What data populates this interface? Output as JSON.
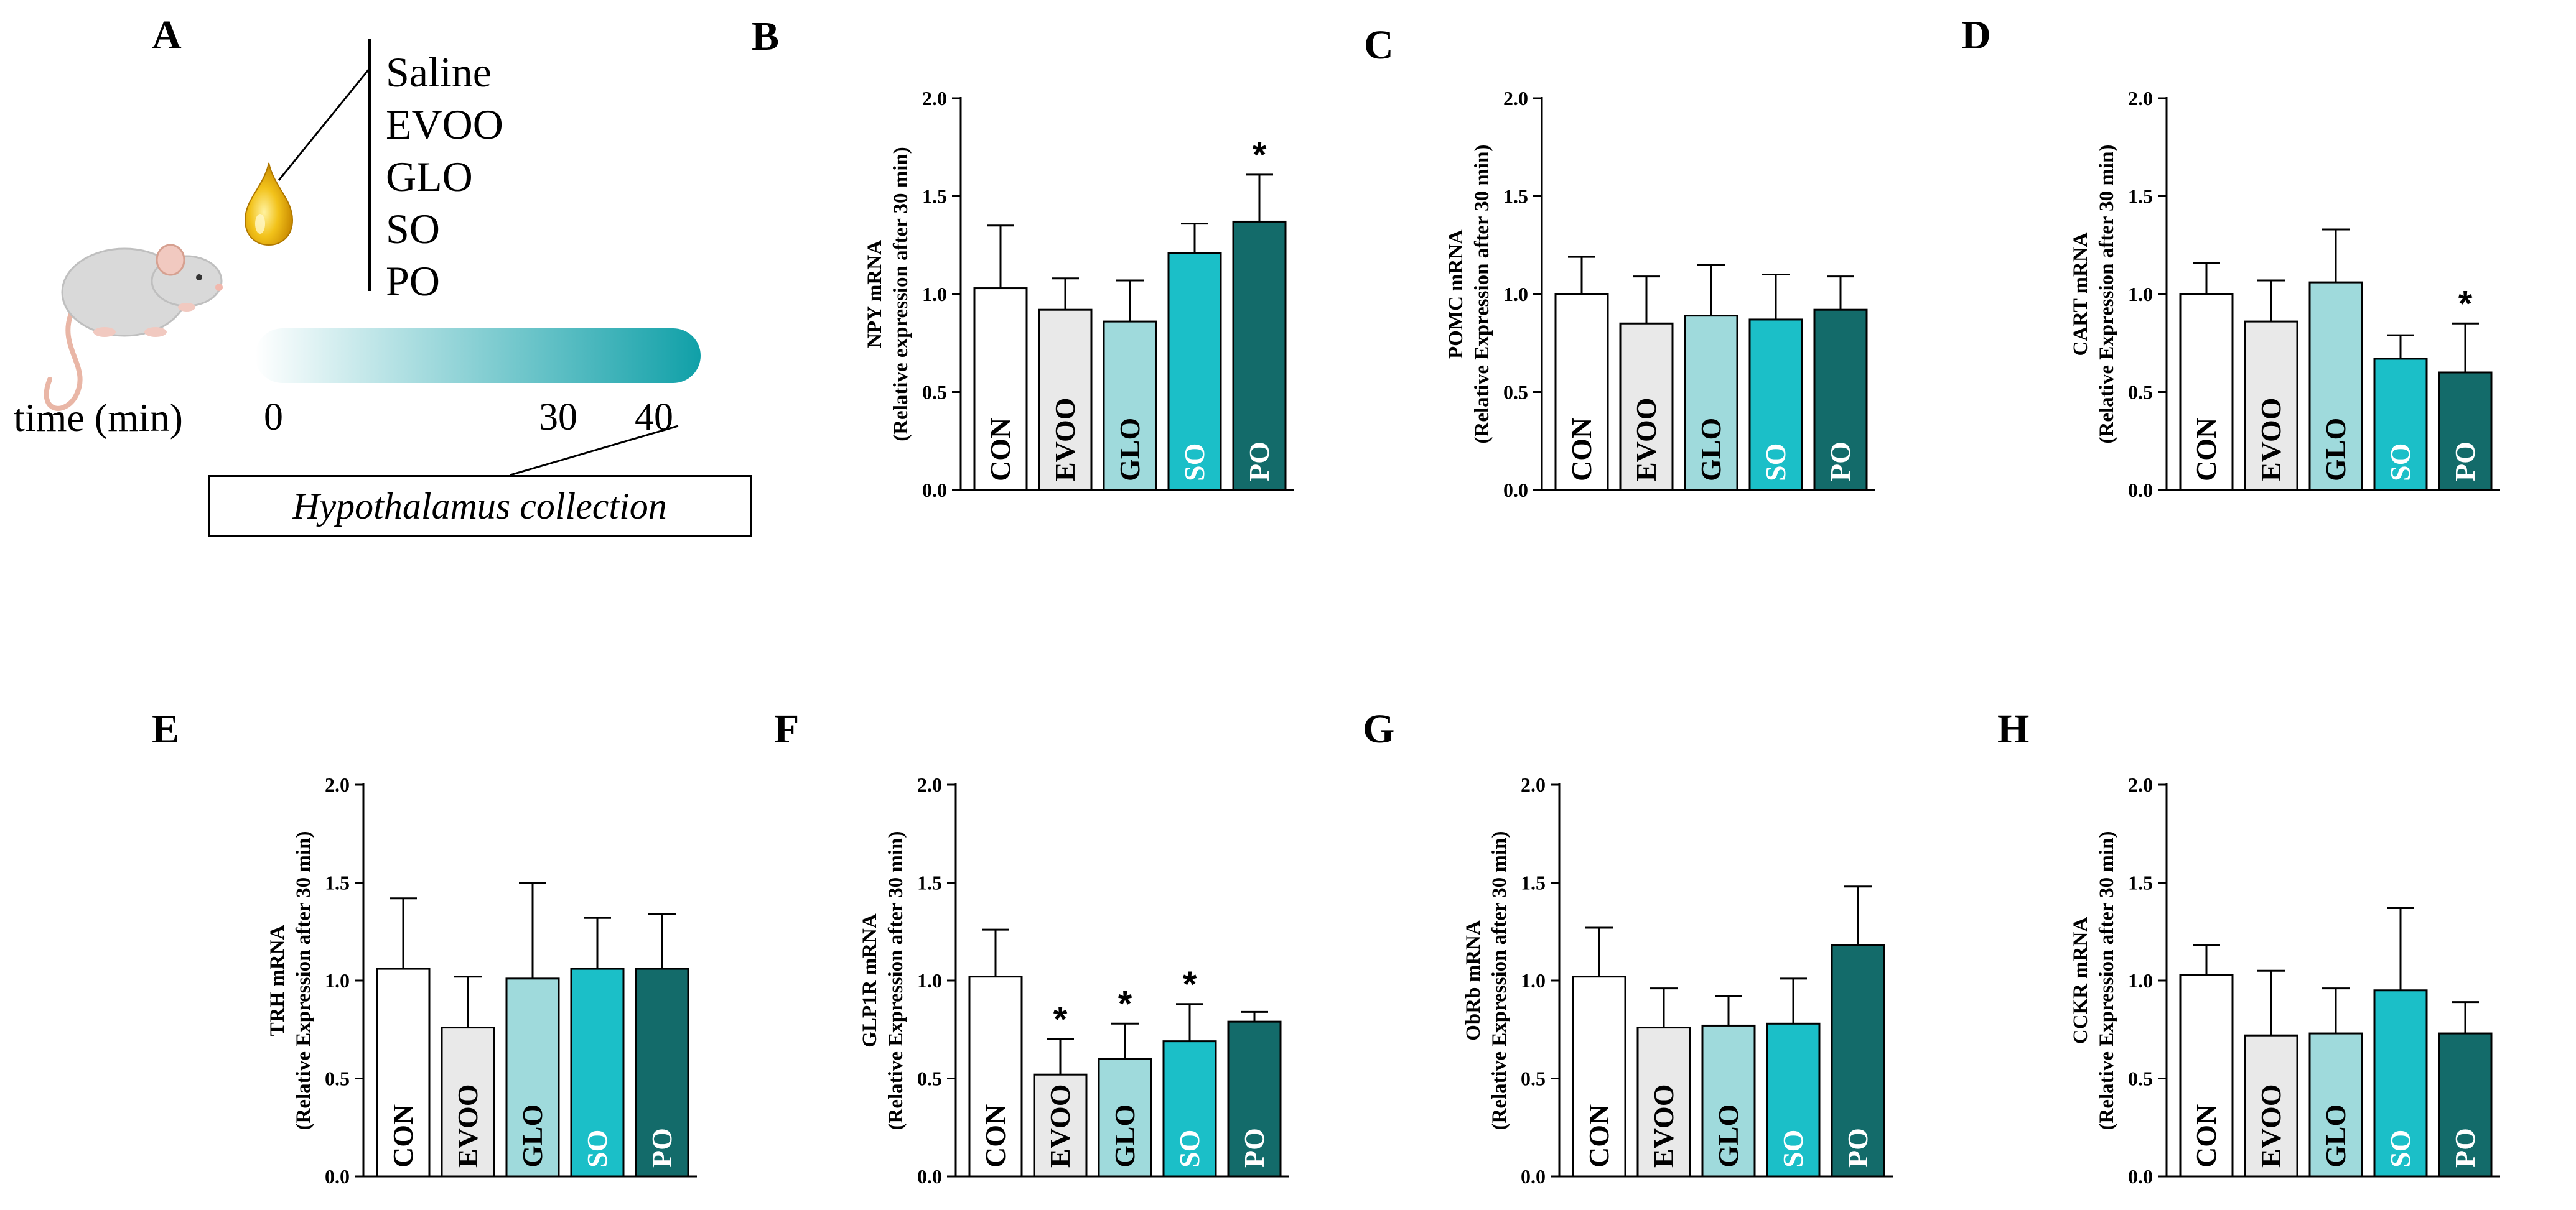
{
  "panel_labels": [
    "A",
    "B",
    "C",
    "D",
    "E",
    "F",
    "G",
    "H"
  ],
  "schematic": {
    "treatments": [
      "Saline",
      "EVOO",
      "GLO",
      "SO",
      "PO"
    ],
    "time_label": "time (min)",
    "time_ticks": [
      "0",
      "30",
      "40"
    ],
    "collection_label": "Hypothalamus collection",
    "icons": [
      "mouse-icon",
      "oil-drop-icon"
    ]
  },
  "colors": {
    "CON": "#ffffff",
    "EVOO": "#e9e9e9",
    "GLO": "#9fdadc",
    "SO": "#1bbfc8",
    "PO": "#136b6a",
    "label_dark": "#000000",
    "label_light": "#ffffff",
    "gradient_end": "#10a0a8"
  },
  "chart_data": [
    {
      "panel": "B",
      "type": "bar",
      "title": "",
      "ylabel_line1": "NPY mRNA",
      "ylabel_line2": "(Relative expression after 30 min)",
      "categories": [
        "CON",
        "EVOO",
        "GLO",
        "SO",
        "PO"
      ],
      "values": [
        1.03,
        0.92,
        0.86,
        1.21,
        1.37
      ],
      "errors": [
        0.32,
        0.16,
        0.21,
        0.15,
        0.24
      ],
      "significance": [
        "",
        "",
        "",
        "",
        "*"
      ],
      "ylim": [
        0,
        2.0
      ],
      "yticks": [
        "0.0",
        "0.5",
        "1.0",
        "1.5",
        "2.0"
      ]
    },
    {
      "panel": "C",
      "type": "bar",
      "title": "",
      "ylabel_line1": "POMC mRNA",
      "ylabel_line2": "(Relative Expression after 30 min)",
      "categories": [
        "CON",
        "EVOO",
        "GLO",
        "SO",
        "PO"
      ],
      "values": [
        1.0,
        0.85,
        0.89,
        0.87,
        0.92
      ],
      "errors": [
        0.19,
        0.24,
        0.26,
        0.23,
        0.17
      ],
      "significance": [
        "",
        "",
        "",
        "",
        ""
      ],
      "ylim": [
        0,
        2.0
      ],
      "yticks": [
        "0.0",
        "0.5",
        "1.0",
        "1.5",
        "2.0"
      ]
    },
    {
      "panel": "D",
      "type": "bar",
      "title": "",
      "ylabel_line1": "CART mRNA",
      "ylabel_line2": "(Relative Expression after 30 min)",
      "categories": [
        "CON",
        "EVOO",
        "GLO",
        "SO",
        "PO"
      ],
      "values": [
        1.0,
        0.86,
        1.06,
        0.67,
        0.6
      ],
      "errors": [
        0.16,
        0.21,
        0.27,
        0.12,
        0.25
      ],
      "significance": [
        "",
        "",
        "",
        "",
        "*"
      ],
      "ylim": [
        0,
        2.0
      ],
      "yticks": [
        "0.0",
        "0.5",
        "1.0",
        "1.5",
        "2.0"
      ]
    },
    {
      "panel": "E",
      "type": "bar",
      "title": "",
      "ylabel_line1": "TRH mRNA",
      "ylabel_line2": "(Relative Expression after 30 min)",
      "categories": [
        "CON",
        "EVOO",
        "GLO",
        "SO",
        "PO"
      ],
      "values": [
        1.06,
        0.76,
        1.01,
        1.06,
        1.06
      ],
      "errors": [
        0.36,
        0.26,
        0.49,
        0.26,
        0.28
      ],
      "significance": [
        "",
        "",
        "",
        "",
        ""
      ],
      "ylim": [
        0,
        2.0
      ],
      "yticks": [
        "0.0",
        "0.5",
        "1.0",
        "1.5",
        "2.0"
      ]
    },
    {
      "panel": "F",
      "type": "bar",
      "title": "",
      "ylabel_line1": "GLP1R mRNA",
      "ylabel_line2": "(Relative Expression after 30 min)",
      "categories": [
        "CON",
        "EVOO",
        "GLO",
        "SO",
        "PO"
      ],
      "values": [
        1.02,
        0.52,
        0.6,
        0.69,
        0.79
      ],
      "errors": [
        0.24,
        0.18,
        0.18,
        0.19,
        0.05
      ],
      "significance": [
        "",
        "*",
        "*",
        "*",
        ""
      ],
      "ylim": [
        0,
        2.0
      ],
      "yticks": [
        "0.0",
        "0.5",
        "1.0",
        "1.5",
        "2.0"
      ]
    },
    {
      "panel": "G",
      "type": "bar",
      "title": "",
      "ylabel_line1": "ObRb mRNA",
      "ylabel_line2": "(Relative Expression after 30 min)",
      "categories": [
        "CON",
        "EVOO",
        "GLO",
        "SO",
        "PO"
      ],
      "values": [
        1.02,
        0.76,
        0.77,
        0.78,
        1.18
      ],
      "errors": [
        0.25,
        0.2,
        0.15,
        0.23,
        0.3
      ],
      "significance": [
        "",
        "",
        "",
        "",
        ""
      ],
      "ylim": [
        0,
        2.0
      ],
      "yticks": [
        "0.0",
        "0.5",
        "1.0",
        "1.5",
        "2.0"
      ]
    },
    {
      "panel": "H",
      "type": "bar",
      "title": "",
      "ylabel_line1": "CCKR mRNA",
      "ylabel_line2": "(Relative Expression after 30 min)",
      "categories": [
        "CON",
        "EVOO",
        "GLO",
        "SO",
        "PO"
      ],
      "values": [
        1.03,
        0.72,
        0.73,
        0.95,
        0.73
      ],
      "errors": [
        0.15,
        0.33,
        0.23,
        0.42,
        0.16
      ],
      "significance": [
        "",
        "",
        "",
        "",
        ""
      ],
      "ylim": [
        0,
        2.0
      ],
      "yticks": [
        "0.0",
        "0.5",
        "1.0",
        "1.5",
        "2.0"
      ]
    }
  ]
}
